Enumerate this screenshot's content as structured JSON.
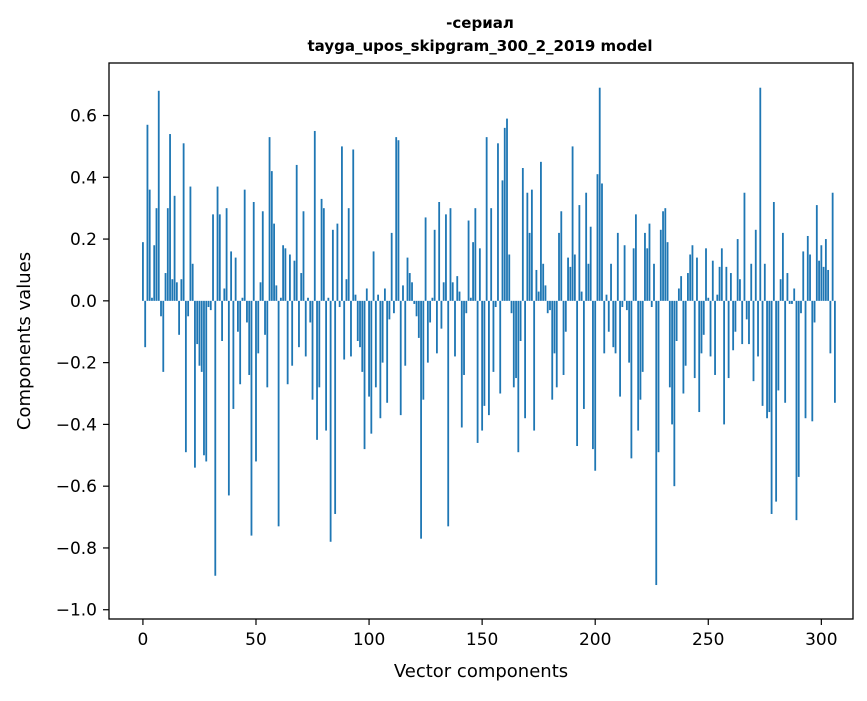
{
  "chart_data": {
    "type": "bar",
    "title_line1": "-сериал",
    "title_line2": "tayga_upos_skipgram_300_2_2019 model",
    "xlabel": "Vector components",
    "ylabel": "Components values",
    "xlim": [
      -15,
      314
    ],
    "ylim": [
      -1.03,
      0.77
    ],
    "xticks": [
      0,
      50,
      100,
      150,
      200,
      250,
      300
    ],
    "xtick_labels": [
      "0",
      "50",
      "100",
      "150",
      "200",
      "250",
      "300"
    ],
    "yticks": [
      0.6,
      0.4,
      0.2,
      0.0,
      -0.2,
      -0.4,
      -0.6,
      -0.8,
      -1.0
    ],
    "ytick_labels": [
      "0.6",
      "0.4",
      "0.2",
      "0.0",
      "−0.2",
      "−0.4",
      "−0.6",
      "−0.8",
      "−1.0"
    ],
    "bar_color": "#1f77b4",
    "grid": false,
    "legend": "none",
    "values": [
      0.19,
      -0.15,
      0.57,
      0.36,
      0.01,
      0.18,
      0.3,
      0.68,
      -0.05,
      -0.23,
      0.09,
      0.3,
      0.54,
      0.07,
      0.34,
      0.06,
      -0.11,
      0.07,
      0.51,
      -0.49,
      -0.05,
      0.37,
      0.12,
      -0.54,
      -0.14,
      -0.21,
      -0.23,
      -0.5,
      -0.52,
      -0.02,
      -0.03,
      0.28,
      -0.89,
      0.37,
      0.28,
      -0.13,
      0.04,
      0.3,
      -0.63,
      0.16,
      -0.35,
      0.14,
      -0.1,
      -0.27,
      0.01,
      0.36,
      -0.07,
      -0.24,
      -0.76,
      0.32,
      -0.52,
      -0.17,
      0.06,
      0.29,
      -0.11,
      -0.28,
      0.53,
      0.42,
      0.25,
      0.05,
      -0.73,
      0.01,
      0.18,
      0.17,
      -0.27,
      0.15,
      -0.21,
      0.13,
      0.44,
      -0.15,
      0.09,
      0.29,
      -0.18,
      0.01,
      -0.07,
      -0.32,
      0.55,
      -0.45,
      -0.28,
      0.33,
      0.3,
      -0.42,
      0.01,
      -0.78,
      0.23,
      -0.69,
      0.25,
      -0.02,
      0.5,
      -0.19,
      0.07,
      0.3,
      -0.18,
      0.49,
      0.02,
      -0.13,
      -0.15,
      -0.23,
      -0.48,
      0.04,
      -0.31,
      -0.43,
      0.16,
      -0.28,
      0.02,
      -0.38,
      -0.2,
      0.04,
      -0.33,
      -0.06,
      0.22,
      -0.04,
      0.53,
      0.52,
      -0.37,
      0.05,
      -0.21,
      0.14,
      0.09,
      0.06,
      -0.01,
      -0.05,
      -0.12,
      -0.77,
      -0.32,
      0.27,
      -0.2,
      -0.07,
      0.01,
      0.23,
      -0.17,
      0.32,
      -0.09,
      0.06,
      0.28,
      -0.73,
      0.3,
      0.06,
      -0.18,
      0.08,
      0.03,
      -0.41,
      -0.24,
      -0.04,
      0.26,
      0.01,
      0.19,
      0.3,
      -0.46,
      0.17,
      -0.42,
      -0.34,
      0.53,
      -0.37,
      0.3,
      -0.23,
      -0.02,
      0.51,
      -0.3,
      0.39,
      0.56,
      0.59,
      0.15,
      -0.04,
      -0.28,
      -0.25,
      -0.49,
      -0.13,
      0.43,
      -0.38,
      0.35,
      0.22,
      0.36,
      -0.42,
      0.1,
      0.03,
      0.45,
      0.12,
      0.05,
      -0.04,
      -0.03,
      -0.32,
      -0.17,
      -0.28,
      0.22,
      0.29,
      -0.24,
      -0.1,
      0.14,
      0.11,
      0.5,
      0.15,
      -0.47,
      0.31,
      0.03,
      -0.35,
      0.35,
      0.12,
      0.24,
      -0.48,
      -0.55,
      0.41,
      0.69,
      0.38,
      -0.17,
      0.02,
      -0.1,
      0.12,
      -0.15,
      -0.17,
      0.22,
      -0.31,
      -0.02,
      0.18,
      -0.03,
      -0.2,
      -0.51,
      0.17,
      0.28,
      -0.42,
      -0.32,
      -0.23,
      0.22,
      0.17,
      0.25,
      -0.02,
      0.12,
      -0.92,
      -0.49,
      0.23,
      0.29,
      0.3,
      0.19,
      -0.28,
      -0.4,
      -0.6,
      -0.13,
      0.04,
      0.08,
      -0.3,
      -0.21,
      0.09,
      0.15,
      0.18,
      -0.25,
      0.14,
      -0.36,
      -0.17,
      -0.11,
      0.17,
      0.01,
      -0.18,
      0.13,
      -0.24,
      0.02,
      0.11,
      0.17,
      -0.4,
      0.11,
      -0.25,
      0.09,
      -0.16,
      -0.1,
      0.2,
      0.07,
      -0.14,
      0.35,
      -0.06,
      -0.14,
      0.12,
      -0.26,
      0.23,
      -0.18,
      0.69,
      -0.34,
      0.12,
      -0.38,
      -0.36,
      -0.69,
      0.32,
      -0.65,
      -0.29,
      0.07,
      0.22,
      -0.33,
      0.09,
      -0.01,
      -0.01,
      0.04,
      -0.71,
      -0.57,
      -0.04,
      0.16,
      -0.38,
      0.21,
      0.15,
      -0.39,
      -0.07,
      0.31,
      0.13,
      0.18,
      0.11,
      0.2,
      0.1,
      -0.17,
      0.35,
      -0.33
    ]
  }
}
